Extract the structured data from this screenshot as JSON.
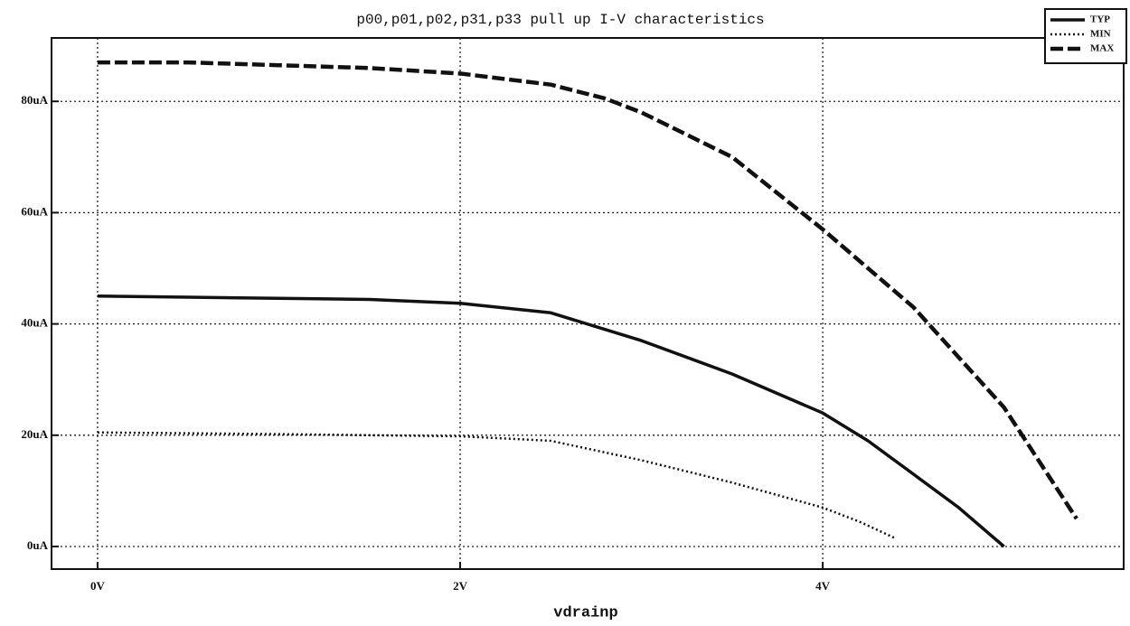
{
  "chart_data": {
    "type": "line",
    "title": "p00,p01,p02,p31,p33 pull up I-V characteristics",
    "xlabel": "vdrainp",
    "xlim": [
      -0.254,
      5.66
    ],
    "xticks": [
      {
        "value": 0,
        "label": "0V"
      },
      {
        "value": 2,
        "label": "2V"
      },
      {
        "value": 4,
        "label": "4V"
      }
    ],
    "ylim": [
      -4.06,
      91.4
    ],
    "yticks": [
      {
        "value": 0,
        "label": "0uA"
      },
      {
        "value": 20,
        "label": "20uA"
      },
      {
        "value": 40,
        "label": "40uA"
      },
      {
        "value": 60,
        "label": "60uA"
      },
      {
        "value": 80,
        "label": "80uA"
      }
    ],
    "grid": true,
    "legend": "upper right",
    "series": [
      {
        "name": "TYP",
        "color": "#111111",
        "style": "solid",
        "x": [
          0,
          0.5,
          1,
          1.5,
          2,
          2.5,
          3,
          3.5,
          4,
          4.25,
          4.5,
          4.75,
          5
        ],
        "values": [
          45,
          44.8,
          44.6,
          44.4,
          43.7,
          42,
          37,
          31,
          24,
          19,
          13,
          7,
          0
        ]
      },
      {
        "name": "MIN",
        "color": "#111111",
        "style": "dotted",
        "x": [
          0,
          1,
          2,
          2.5,
          3,
          3.5,
          4,
          4.2,
          4.4
        ],
        "values": [
          20.5,
          20.2,
          19.8,
          19,
          15.5,
          11.5,
          7,
          4.5,
          1.5
        ]
      },
      {
        "name": "MAX",
        "color": "#111111",
        "style": "dashed",
        "x": [
          0,
          0.5,
          1,
          1.5,
          2,
          2.5,
          2.8,
          3,
          3.5,
          4,
          4.5,
          5,
          5.4
        ],
        "values": [
          87,
          87,
          86.5,
          86,
          85,
          83,
          80.5,
          78,
          70,
          57,
          43,
          25,
          5
        ]
      }
    ]
  }
}
